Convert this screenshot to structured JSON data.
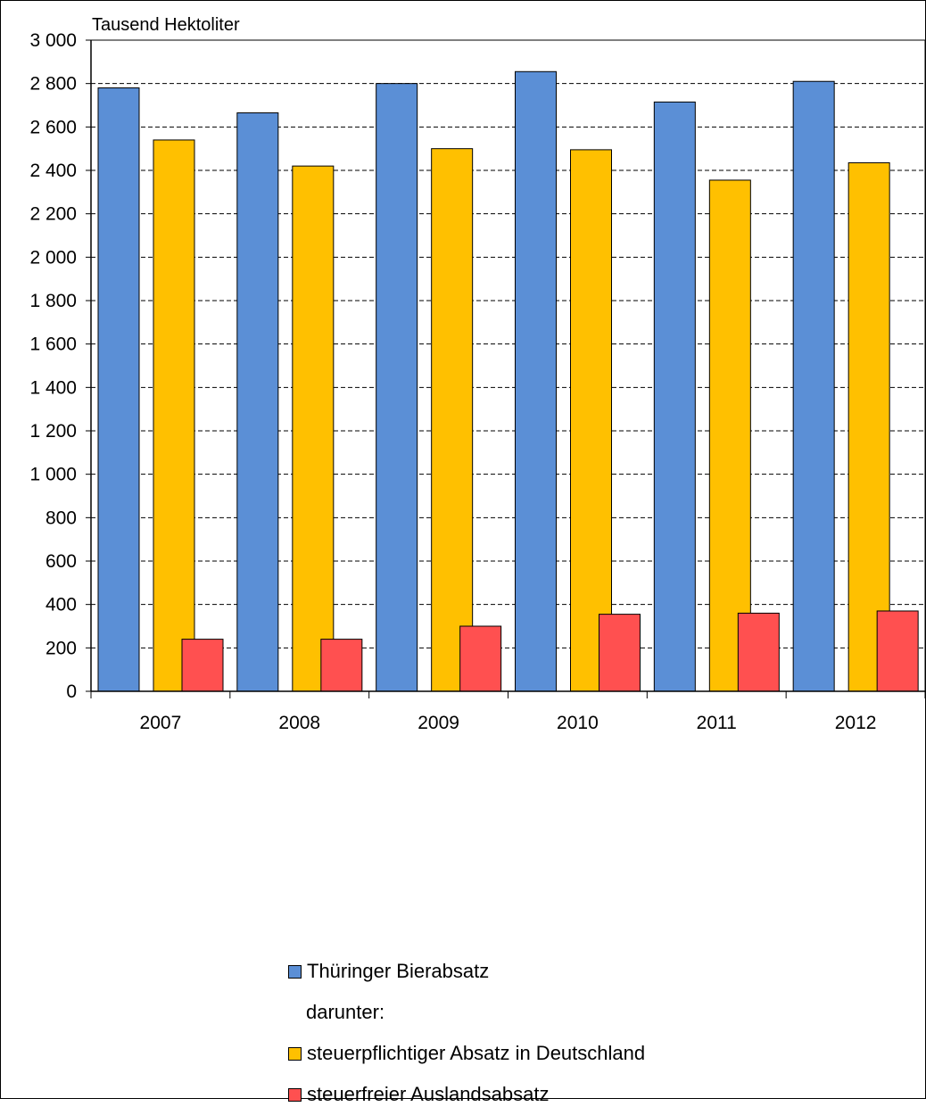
{
  "chart_data": {
    "type": "bar",
    "unit_label": "Tausend  Hektoliter",
    "categories": [
      "2007",
      "2008",
      "2009",
      "2010",
      "2011",
      "2012"
    ],
    "series": [
      {
        "name": "Thüringer Bierabsatz",
        "color": "#5b8fd6",
        "values": [
          2780,
          2665,
          2800,
          2855,
          2715,
          2810
        ]
      },
      {
        "name": "steuerpflichtiger Absatz in Deutschland",
        "color": "#ffc000",
        "values": [
          2540,
          2420,
          2500,
          2495,
          2355,
          2435
        ]
      },
      {
        "name": "steuerfreier Auslandsabsatz",
        "color": "#ff5050",
        "values": [
          240,
          240,
          300,
          355,
          360,
          370
        ]
      }
    ],
    "legend_subheading": "darunter:",
    "ylim": [
      0,
      3000
    ],
    "yticks": [
      0,
      200,
      400,
      600,
      800,
      1000,
      1200,
      1400,
      1600,
      1800,
      2000,
      2200,
      2400,
      2600,
      2800,
      3000
    ],
    "ytick_labels": [
      "0",
      "200",
      "400",
      "600",
      "800",
      "1 000",
      "1 200",
      "1 400",
      "1 600",
      "1 800",
      "2 000",
      "2 200",
      "2 400",
      "2 600",
      "2 800",
      "3 000"
    ],
    "grid": true,
    "legend_position": "bottom"
  }
}
